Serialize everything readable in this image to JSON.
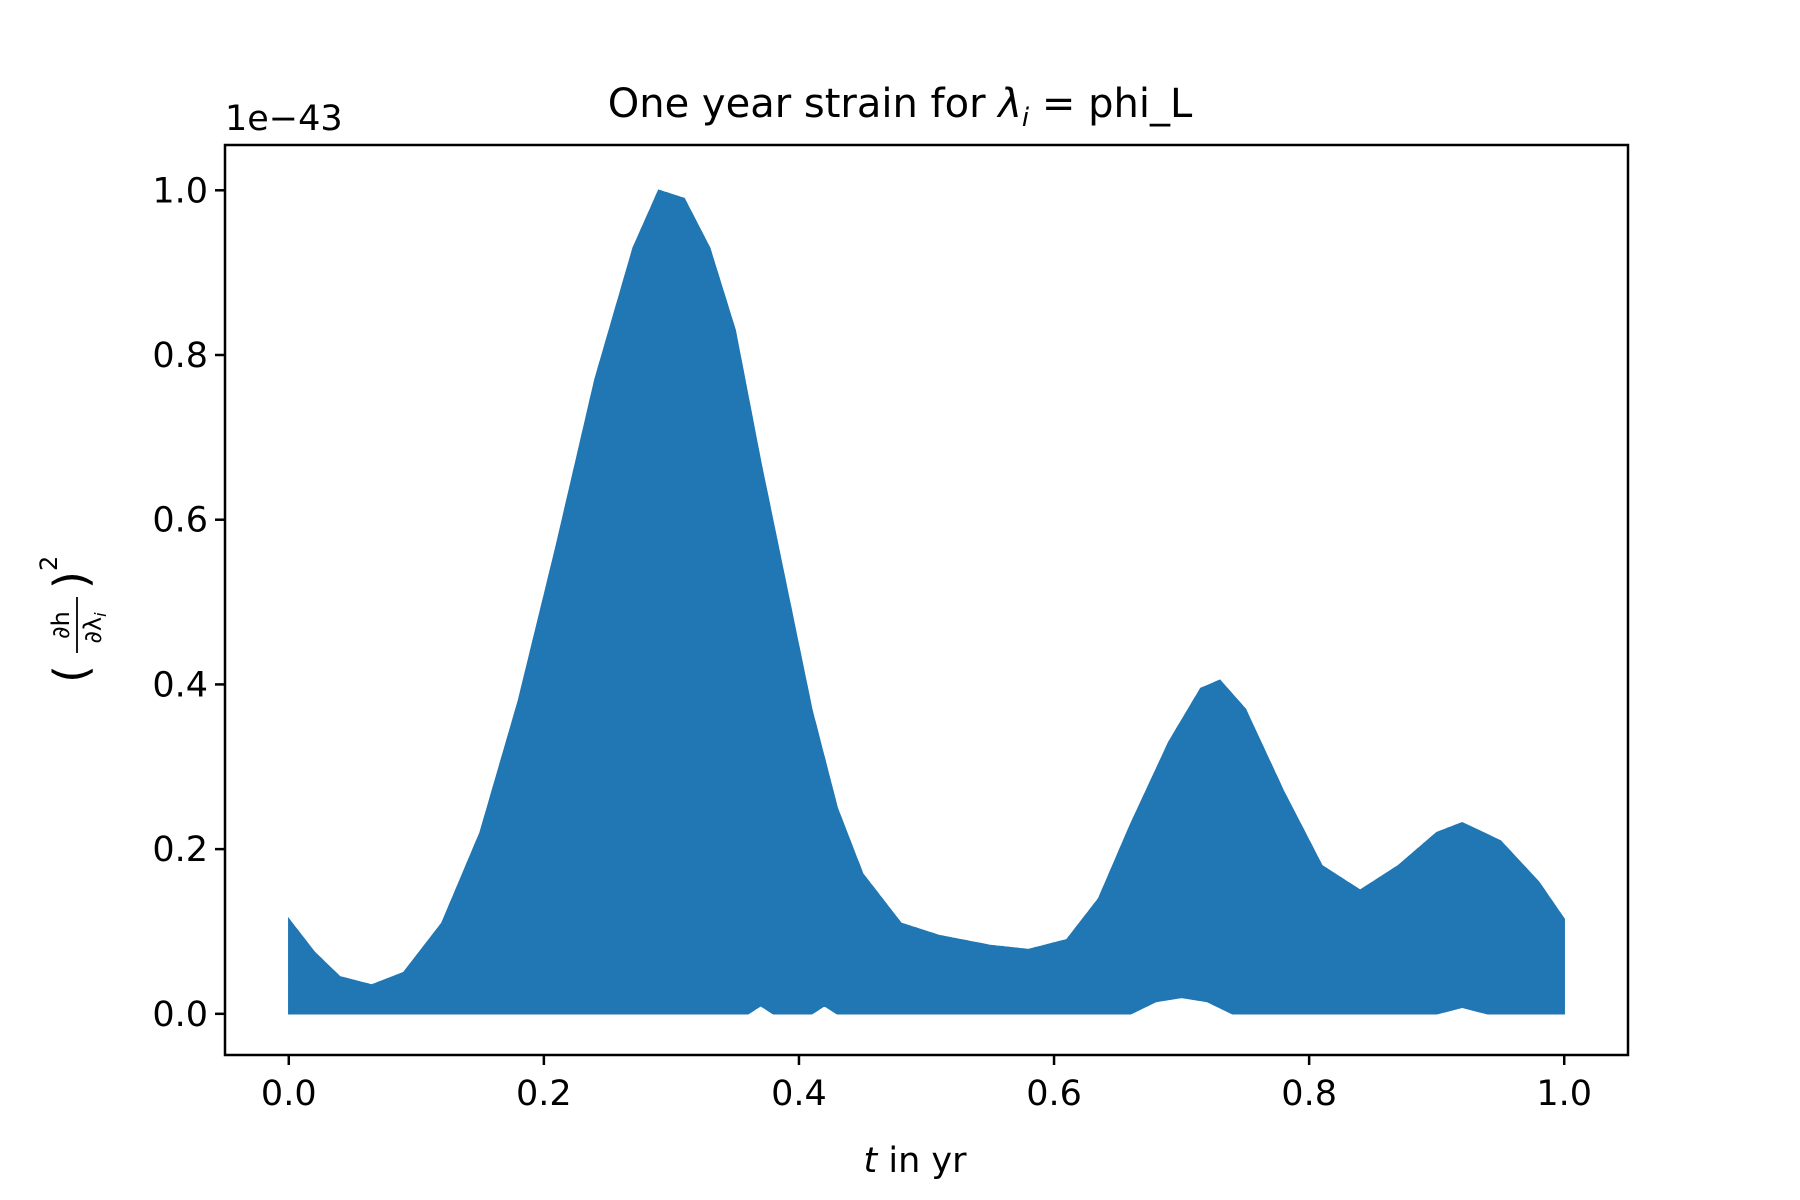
{
  "chart_data": {
    "type": "area",
    "title_prefix": "One year strain for ",
    "title_lambda": "λ",
    "title_sub": "i",
    "title_suffix": " = phi_L",
    "xlabel_var": "t",
    "xlabel_rest": " in yr",
    "ylabel_var": "∂h",
    "ylabel_den": "∂λ",
    "ylabel_sub": "i",
    "ylabel_power": "2",
    "y_offset_text": "1e−43",
    "xlim": [
      -0.05,
      1.05
    ],
    "ylim": [
      -0.05,
      1.055
    ],
    "xticks": [
      {
        "value": 0.0,
        "label": "0.0"
      },
      {
        "value": 0.2,
        "label": "0.2"
      },
      {
        "value": 0.4,
        "label": "0.4"
      },
      {
        "value": 0.6,
        "label": "0.6"
      },
      {
        "value": 0.8,
        "label": "0.8"
      },
      {
        "value": 1.0,
        "label": "1.0"
      }
    ],
    "yticks": [
      {
        "value": 0.0,
        "label": "0.0"
      },
      {
        "value": 0.2,
        "label": "0.2"
      },
      {
        "value": 0.4,
        "label": "0.4"
      },
      {
        "value": 0.6,
        "label": "0.6"
      },
      {
        "value": 0.8,
        "label": "0.8"
      },
      {
        "value": 1.0,
        "label": "1.0"
      }
    ],
    "series": [
      {
        "color": "#2077b4",
        "envelope_upper": [
          [
            0.0,
            0.115
          ],
          [
            0.02,
            0.075
          ],
          [
            0.04,
            0.045
          ],
          [
            0.065,
            0.035
          ],
          [
            0.09,
            0.05
          ],
          [
            0.12,
            0.11
          ],
          [
            0.15,
            0.22
          ],
          [
            0.18,
            0.38
          ],
          [
            0.21,
            0.57
          ],
          [
            0.24,
            0.77
          ],
          [
            0.27,
            0.93
          ],
          [
            0.29,
            1.0
          ],
          [
            0.31,
            0.99
          ],
          [
            0.33,
            0.93
          ],
          [
            0.35,
            0.83
          ],
          [
            0.37,
            0.67
          ],
          [
            0.39,
            0.52
          ],
          [
            0.41,
            0.37
          ],
          [
            0.43,
            0.25
          ],
          [
            0.45,
            0.17
          ],
          [
            0.48,
            0.11
          ],
          [
            0.51,
            0.095
          ],
          [
            0.55,
            0.083
          ],
          [
            0.58,
            0.078
          ],
          [
            0.61,
            0.09
          ],
          [
            0.635,
            0.14
          ],
          [
            0.66,
            0.23
          ],
          [
            0.69,
            0.33
          ],
          [
            0.715,
            0.395
          ],
          [
            0.73,
            0.405
          ],
          [
            0.75,
            0.37
          ],
          [
            0.78,
            0.27
          ],
          [
            0.81,
            0.18
          ],
          [
            0.84,
            0.15
          ],
          [
            0.87,
            0.18
          ],
          [
            0.9,
            0.22
          ],
          [
            0.92,
            0.232
          ],
          [
            0.95,
            0.21
          ],
          [
            0.98,
            0.16
          ],
          [
            1.0,
            0.115
          ]
        ],
        "envelope_lower": [
          [
            0.0,
            0.0
          ],
          [
            0.3,
            0.0
          ],
          [
            0.36,
            0.0
          ],
          [
            0.37,
            0.01
          ],
          [
            0.38,
            0.0
          ],
          [
            0.41,
            0.0
          ],
          [
            0.42,
            0.01
          ],
          [
            0.43,
            0.0
          ],
          [
            0.66,
            0.0
          ],
          [
            0.68,
            0.015
          ],
          [
            0.7,
            0.02
          ],
          [
            0.72,
            0.015
          ],
          [
            0.74,
            0.0
          ],
          [
            0.9,
            0.0
          ],
          [
            0.92,
            0.008
          ],
          [
            0.94,
            0.0
          ],
          [
            1.0,
            0.0
          ]
        ]
      }
    ],
    "grid": false,
    "legend": "none"
  }
}
